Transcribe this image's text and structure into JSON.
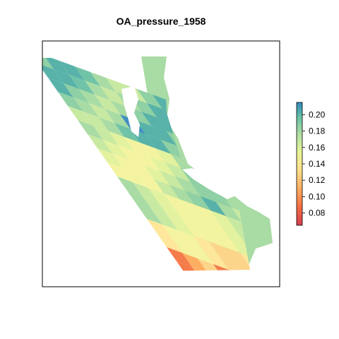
{
  "map": {
    "title": "OA_pressure_1958",
    "legend_ticks": [
      "0.08",
      "0.10",
      "0.12",
      "0.14",
      "0.16",
      "0.18",
      "0.20"
    ],
    "colors": {
      "low": "#d7474b",
      "mid_low": "#fdae61",
      "mid": "#fee08b",
      "mid_high": "#e6f598",
      "high": "#66c2a5",
      "max": "#3288bd",
      "land": "#a9dba5"
    }
  },
  "chart_data": {
    "type": "heatmap",
    "title": "OA_pressure_1958",
    "color_scale": {
      "min": 0.065,
      "max": 0.215,
      "ticks": [
        0.08,
        0.1,
        0.12,
        0.14,
        0.16,
        0.18,
        0.2
      ]
    },
    "grid": false,
    "legend": "right"
  }
}
